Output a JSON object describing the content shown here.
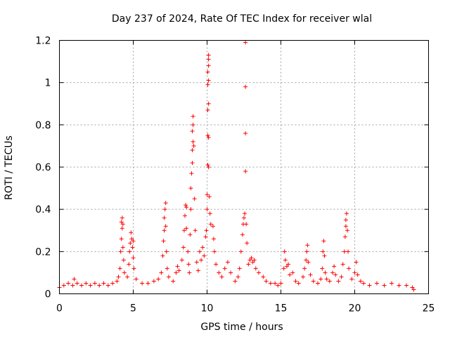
{
  "chart_data": {
    "type": "scatter",
    "title": "Day 237 of 2024, Rate Of TEC Index for receiver wlal",
    "xlabel": "GPS time / hours",
    "ylabel": "ROTI / TECUs",
    "xlim": [
      0,
      25
    ],
    "ylim": [
      0,
      1.2
    ],
    "xticks": [
      0,
      5,
      10,
      15,
      20,
      25
    ],
    "xtick_labels": [
      "0",
      "5",
      "10",
      "15",
      "20",
      "25"
    ],
    "yticks": [
      0,
      0.2,
      0.4,
      0.6,
      0.8,
      1.0,
      1.2
    ],
    "ytick_labels": [
      "0",
      "0.2",
      "0.4",
      "0.6",
      "0.8",
      "1",
      "1.2"
    ],
    "grid": true,
    "marker": "+",
    "color": "#ff0000",
    "series": [
      {
        "name": "ROTI",
        "points": [
          [
            0.0,
            0.03
          ],
          [
            0.3,
            0.04
          ],
          [
            0.6,
            0.05
          ],
          [
            0.9,
            0.04
          ],
          [
            1.0,
            0.07
          ],
          [
            1.2,
            0.05
          ],
          [
            1.5,
            0.04
          ],
          [
            1.8,
            0.05
          ],
          [
            2.1,
            0.04
          ],
          [
            2.4,
            0.05
          ],
          [
            2.7,
            0.04
          ],
          [
            3.0,
            0.05
          ],
          [
            3.3,
            0.04
          ],
          [
            3.6,
            0.05
          ],
          [
            3.9,
            0.06
          ],
          [
            4.0,
            0.08
          ],
          [
            4.1,
            0.12
          ],
          [
            4.15,
            0.2
          ],
          [
            4.2,
            0.26
          ],
          [
            4.25,
            0.31
          ],
          [
            4.2,
            0.34
          ],
          [
            4.25,
            0.36
          ],
          [
            4.3,
            0.33
          ],
          [
            4.3,
            0.22
          ],
          [
            4.35,
            0.16
          ],
          [
            4.4,
            0.1
          ],
          [
            4.6,
            0.08
          ],
          [
            4.7,
            0.14
          ],
          [
            4.75,
            0.2
          ],
          [
            4.8,
            0.24
          ],
          [
            4.85,
            0.29
          ],
          [
            4.9,
            0.26
          ],
          [
            4.95,
            0.22
          ],
          [
            5.0,
            0.25
          ],
          [
            5.0,
            0.17
          ],
          [
            5.05,
            0.12
          ],
          [
            5.2,
            0.07
          ],
          [
            5.6,
            0.05
          ],
          [
            6.0,
            0.05
          ],
          [
            6.4,
            0.06
          ],
          [
            6.7,
            0.07
          ],
          [
            6.9,
            0.1
          ],
          [
            7.0,
            0.18
          ],
          [
            7.05,
            0.25
          ],
          [
            7.1,
            0.3
          ],
          [
            7.1,
            0.36
          ],
          [
            7.15,
            0.4
          ],
          [
            7.2,
            0.43
          ],
          [
            7.2,
            0.32
          ],
          [
            7.25,
            0.2
          ],
          [
            7.3,
            0.12
          ],
          [
            7.4,
            0.08
          ],
          [
            7.7,
            0.06
          ],
          [
            7.9,
            0.1
          ],
          [
            8.0,
            0.13
          ],
          [
            8.1,
            0.11
          ],
          [
            8.3,
            0.16
          ],
          [
            8.4,
            0.22
          ],
          [
            8.45,
            0.3
          ],
          [
            8.5,
            0.37
          ],
          [
            8.55,
            0.42
          ],
          [
            8.6,
            0.41
          ],
          [
            8.6,
            0.31
          ],
          [
            8.7,
            0.2
          ],
          [
            8.75,
            0.14
          ],
          [
            8.8,
            0.1
          ],
          [
            8.85,
            0.28
          ],
          [
            8.9,
            0.4
          ],
          [
            8.9,
            0.5
          ],
          [
            8.95,
            0.57
          ],
          [
            9.0,
            0.62
          ],
          [
            9.0,
            0.68
          ],
          [
            9.05,
            0.72
          ],
          [
            9.0,
            0.77
          ],
          [
            9.05,
            0.8
          ],
          [
            9.05,
            0.84
          ],
          [
            9.1,
            0.7
          ],
          [
            9.15,
            0.45
          ],
          [
            9.2,
            0.3
          ],
          [
            9.3,
            0.15
          ],
          [
            9.4,
            0.11
          ],
          [
            9.5,
            0.2
          ],
          [
            9.6,
            0.16
          ],
          [
            9.7,
            0.22
          ],
          [
            9.8,
            0.18
          ],
          [
            9.9,
            0.27
          ],
          [
            9.95,
            0.3
          ],
          [
            10.0,
            0.4
          ],
          [
            10.0,
            0.47
          ],
          [
            10.05,
            0.61
          ],
          [
            10.05,
            0.75
          ],
          [
            10.05,
            0.87
          ],
          [
            10.05,
            0.99
          ],
          [
            10.05,
            1.05
          ],
          [
            10.1,
            1.08
          ],
          [
            10.1,
            1.11
          ],
          [
            10.1,
            1.13
          ],
          [
            10.1,
            1.01
          ],
          [
            10.1,
            0.9
          ],
          [
            10.1,
            0.74
          ],
          [
            10.1,
            0.6
          ],
          [
            10.15,
            0.46
          ],
          [
            10.2,
            0.38
          ],
          [
            10.25,
            0.33
          ],
          [
            10.4,
            0.32
          ],
          [
            10.45,
            0.26
          ],
          [
            10.5,
            0.2
          ],
          [
            10.6,
            0.14
          ],
          [
            10.8,
            0.1
          ],
          [
            11.0,
            0.08
          ],
          [
            11.2,
            0.12
          ],
          [
            11.4,
            0.15
          ],
          [
            11.6,
            0.1
          ],
          [
            11.9,
            0.06
          ],
          [
            12.1,
            0.08
          ],
          [
            12.2,
            0.12
          ],
          [
            12.3,
            0.2
          ],
          [
            12.4,
            0.28
          ],
          [
            12.45,
            0.33
          ],
          [
            12.5,
            0.36
          ],
          [
            12.55,
            0.38
          ],
          [
            12.6,
            0.58
          ],
          [
            12.6,
            0.76
          ],
          [
            12.6,
            0.98
          ],
          [
            12.6,
            1.19
          ],
          [
            12.65,
            0.33
          ],
          [
            12.7,
            0.24
          ],
          [
            12.8,
            0.14
          ],
          [
            12.9,
            0.16
          ],
          [
            13.0,
            0.17
          ],
          [
            13.1,
            0.15
          ],
          [
            13.2,
            0.16
          ],
          [
            13.3,
            0.12
          ],
          [
            13.5,
            0.1
          ],
          [
            13.8,
            0.08
          ],
          [
            14.0,
            0.06
          ],
          [
            14.3,
            0.05
          ],
          [
            14.6,
            0.05
          ],
          [
            14.8,
            0.04
          ],
          [
            15.0,
            0.05
          ],
          [
            15.2,
            0.12
          ],
          [
            15.25,
            0.2
          ],
          [
            15.3,
            0.16
          ],
          [
            15.4,
            0.13
          ],
          [
            15.5,
            0.14
          ],
          [
            15.6,
            0.09
          ],
          [
            15.8,
            0.1
          ],
          [
            16.0,
            0.06
          ],
          [
            16.2,
            0.05
          ],
          [
            16.5,
            0.08
          ],
          [
            16.6,
            0.12
          ],
          [
            16.7,
            0.16
          ],
          [
            16.75,
            0.2
          ],
          [
            16.8,
            0.23
          ],
          [
            16.85,
            0.15
          ],
          [
            17.0,
            0.09
          ],
          [
            17.2,
            0.06
          ],
          [
            17.5,
            0.05
          ],
          [
            17.7,
            0.07
          ],
          [
            17.8,
            0.12
          ],
          [
            17.85,
            0.2
          ],
          [
            17.9,
            0.25
          ],
          [
            17.95,
            0.18
          ],
          [
            18.0,
            0.1
          ],
          [
            18.1,
            0.07
          ],
          [
            18.3,
            0.06
          ],
          [
            18.5,
            0.1
          ],
          [
            18.6,
            0.13
          ],
          [
            18.7,
            0.09
          ],
          [
            18.9,
            0.06
          ],
          [
            19.1,
            0.08
          ],
          [
            19.2,
            0.14
          ],
          [
            19.3,
            0.2
          ],
          [
            19.35,
            0.27
          ],
          [
            19.4,
            0.32
          ],
          [
            19.4,
            0.35
          ],
          [
            19.45,
            0.38
          ],
          [
            19.5,
            0.3
          ],
          [
            19.55,
            0.2
          ],
          [
            19.6,
            0.12
          ],
          [
            19.8,
            0.07
          ],
          [
            20.0,
            0.1
          ],
          [
            20.1,
            0.15
          ],
          [
            20.2,
            0.09
          ],
          [
            20.4,
            0.06
          ],
          [
            20.6,
            0.05
          ],
          [
            21.0,
            0.04
          ],
          [
            21.5,
            0.05
          ],
          [
            22.0,
            0.04
          ],
          [
            22.5,
            0.05
          ],
          [
            23.0,
            0.04
          ],
          [
            23.5,
            0.04
          ],
          [
            23.9,
            0.03
          ],
          [
            24.0,
            0.02
          ]
        ]
      }
    ]
  }
}
